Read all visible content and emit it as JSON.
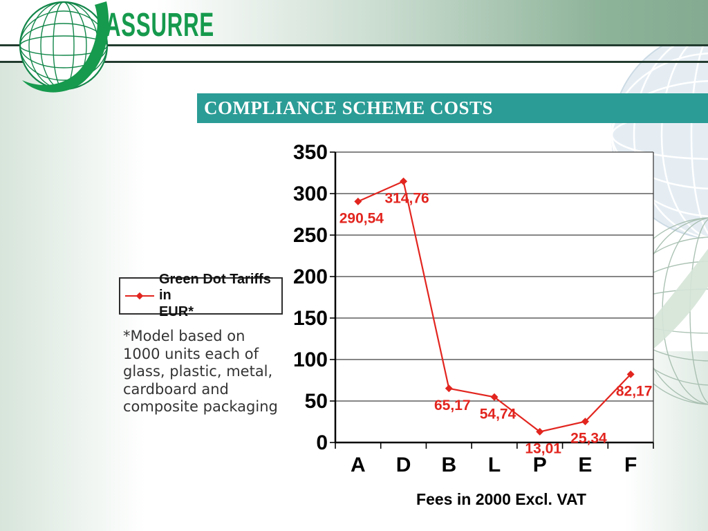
{
  "logo": {
    "brand": "ASSURRE",
    "color": "#169a4d"
  },
  "title_bar": {
    "text": "COMPLIANCE SCHEME COSTS",
    "bg_color": "#2b9c96",
    "text_color": "#ffffff"
  },
  "legend": {
    "label": "Green Dot Tariffs in\nEUR*"
  },
  "footnote": {
    "text": "*Model based on\n1000 units each of\nglass, plastic, metal,\ncardboard and\ncomposite packaging"
  },
  "chart_data": {
    "type": "line",
    "title": "",
    "categories": [
      "A",
      "D",
      "B",
      "L",
      "P",
      "E",
      "F"
    ],
    "series": [
      {
        "name": "Green Dot Tariffs in EUR*",
        "values": [
          290.54,
          314.76,
          65.17,
          54.74,
          13.01,
          25.34,
          82.17
        ]
      }
    ],
    "data_labels": [
      "290,54",
      "314,76",
      "65,17",
      "54,74",
      "13,01",
      "25,34",
      "82,17"
    ],
    "xlabel": "Fees in 2000 Excl. VAT",
    "ylabel": "",
    "ylim": [
      0,
      350
    ],
    "yticks": [
      0,
      50,
      100,
      150,
      200,
      250,
      300,
      350
    ],
    "grid": true,
    "legend_position": "left-outside",
    "line_color": "#e2251f",
    "label_color": "#e2251f",
    "marker": "diamond",
    "decimal_separator": ","
  }
}
